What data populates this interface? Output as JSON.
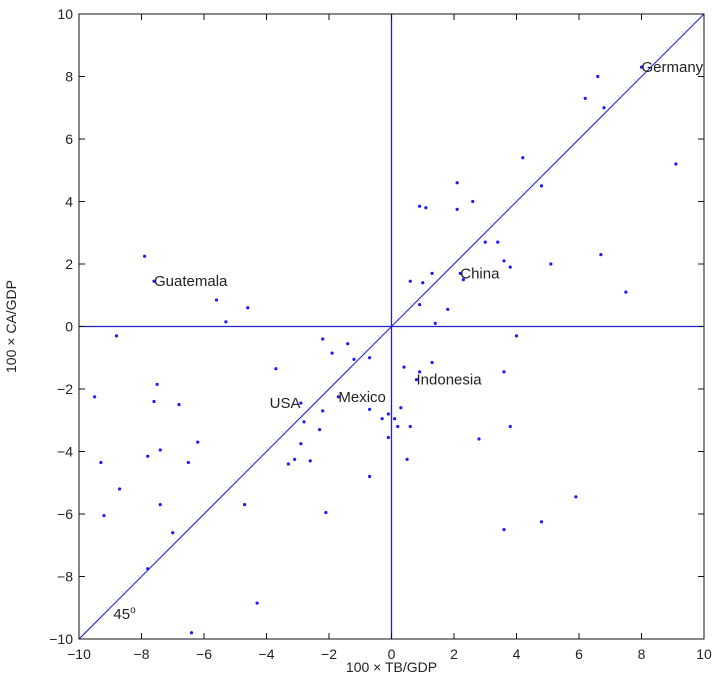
{
  "chart_data": {
    "type": "scatter",
    "title": "",
    "xlabel": "100 × TB/GDP",
    "ylabel": "100 × CA/GDP",
    "xlim": [
      -10,
      10
    ],
    "ylim": [
      -10,
      10
    ],
    "xticks": [
      -10,
      -8,
      -6,
      -4,
      -2,
      0,
      2,
      4,
      6,
      8,
      10
    ],
    "yticks": [
      -10,
      -8,
      -6,
      -4,
      -2,
      0,
      2,
      4,
      6,
      8,
      10
    ],
    "grid": false,
    "reference_lines": [
      "x = 0",
      "y = 0",
      "y = x"
    ],
    "colors": {
      "points": "#1a1aff",
      "lines": "#2020d0",
      "text": "#222222"
    },
    "points": [
      {
        "x": 8.0,
        "y": 8.3
      },
      {
        "x": 6.6,
        "y": 8.0
      },
      {
        "x": 6.2,
        "y": 7.3
      },
      {
        "x": 6.8,
        "y": 7.0
      },
      {
        "x": 4.2,
        "y": 5.4
      },
      {
        "x": 9.1,
        "y": 5.2
      },
      {
        "x": 2.1,
        "y": 4.6
      },
      {
        "x": 4.8,
        "y": 4.5
      },
      {
        "x": 2.6,
        "y": 4.0
      },
      {
        "x": 0.9,
        "y": 3.85
      },
      {
        "x": 1.1,
        "y": 3.8
      },
      {
        "x": 2.1,
        "y": 3.75
      },
      {
        "x": 3.0,
        "y": 2.7
      },
      {
        "x": 3.4,
        "y": 2.7
      },
      {
        "x": 6.7,
        "y": 2.3
      },
      {
        "x": 3.6,
        "y": 2.1
      },
      {
        "x": 3.8,
        "y": 1.9
      },
      {
        "x": 5.1,
        "y": 2.0
      },
      {
        "x": 2.2,
        "y": 1.7
      },
      {
        "x": 1.3,
        "y": 1.7
      },
      {
        "x": 2.3,
        "y": 1.5
      },
      {
        "x": 0.6,
        "y": 1.45
      },
      {
        "x": 1.0,
        "y": 1.4
      },
      {
        "x": 7.5,
        "y": 1.1
      },
      {
        "x": 0.9,
        "y": 0.7
      },
      {
        "x": 1.8,
        "y": 0.55
      },
      {
        "x": 1.4,
        "y": 0.1
      },
      {
        "x": -7.9,
        "y": 2.25
      },
      {
        "x": -7.6,
        "y": 1.45
      },
      {
        "x": -5.6,
        "y": 0.85
      },
      {
        "x": -4.6,
        "y": 0.6
      },
      {
        "x": -5.3,
        "y": 0.15
      },
      {
        "x": -8.8,
        "y": -0.3
      },
      {
        "x": -2.2,
        "y": -0.4
      },
      {
        "x": -1.4,
        "y": -0.55
      },
      {
        "x": -1.9,
        "y": -0.85
      },
      {
        "x": -1.2,
        "y": -1.05
      },
      {
        "x": -0.7,
        "y": -1.0
      },
      {
        "x": 4.0,
        "y": -0.3
      },
      {
        "x": 1.3,
        "y": -1.15
      },
      {
        "x": 0.4,
        "y": -1.3
      },
      {
        "x": -3.7,
        "y": -1.35
      },
      {
        "x": 0.9,
        "y": -1.45
      },
      {
        "x": 3.6,
        "y": -1.45
      },
      {
        "x": 0.8,
        "y": -1.7
      },
      {
        "x": -7.5,
        "y": -1.85
      },
      {
        "x": -9.5,
        "y": -2.25
      },
      {
        "x": -1.7,
        "y": -2.25
      },
      {
        "x": -7.6,
        "y": -2.4
      },
      {
        "x": -6.8,
        "y": -2.5
      },
      {
        "x": -2.9,
        "y": -2.45
      },
      {
        "x": -2.2,
        "y": -2.7
      },
      {
        "x": -0.7,
        "y": -2.65
      },
      {
        "x": 0.3,
        "y": -2.6
      },
      {
        "x": -0.1,
        "y": -2.8
      },
      {
        "x": 0.1,
        "y": -2.95
      },
      {
        "x": -0.3,
        "y": -2.95
      },
      {
        "x": -2.8,
        "y": -3.05
      },
      {
        "x": 0.6,
        "y": -3.2
      },
      {
        "x": 0.2,
        "y": -3.2
      },
      {
        "x": 3.8,
        "y": -3.2
      },
      {
        "x": -2.3,
        "y": -3.3
      },
      {
        "x": -0.1,
        "y": -3.55
      },
      {
        "x": 2.8,
        "y": -3.6
      },
      {
        "x": -6.2,
        "y": -3.7
      },
      {
        "x": -2.9,
        "y": -3.75
      },
      {
        "x": -7.4,
        "y": -3.95
      },
      {
        "x": -7.8,
        "y": -4.15
      },
      {
        "x": -3.1,
        "y": -4.25
      },
      {
        "x": -2.6,
        "y": -4.3
      },
      {
        "x": -3.3,
        "y": -4.4
      },
      {
        "x": -6.5,
        "y": -4.35
      },
      {
        "x": -9.3,
        "y": -4.35
      },
      {
        "x": 0.5,
        "y": -4.25
      },
      {
        "x": -0.7,
        "y": -4.8
      },
      {
        "x": -8.7,
        "y": -5.2
      },
      {
        "x": 5.9,
        "y": -5.45
      },
      {
        "x": -7.4,
        "y": -5.7
      },
      {
        "x": -4.7,
        "y": -5.7
      },
      {
        "x": -2.1,
        "y": -5.95
      },
      {
        "x": -9.2,
        "y": -6.05
      },
      {
        "x": 4.8,
        "y": -6.25
      },
      {
        "x": 3.6,
        "y": -6.5
      },
      {
        "x": -7.0,
        "y": -6.6
      },
      {
        "x": -7.8,
        "y": -7.75
      },
      {
        "x": -4.3,
        "y": -8.85
      },
      {
        "x": -6.4,
        "y": -9.8
      }
    ],
    "annotations": [
      {
        "text": "Germany",
        "x": 8.0,
        "y": 8.3
      },
      {
        "text": "Guatemala",
        "x": -7.6,
        "y": 1.45
      },
      {
        "text": "China",
        "x": 2.2,
        "y": 1.7
      },
      {
        "text": "Indonesia",
        "x": 0.8,
        "y": -1.7
      },
      {
        "text": "USA",
        "x": -3.9,
        "y": -2.45
      },
      {
        "text": "Mexico",
        "x": -1.7,
        "y": -2.25
      },
      {
        "text": "45",
        "x": -8.9,
        "y": -9.2,
        "superscript": "o"
      }
    ]
  }
}
